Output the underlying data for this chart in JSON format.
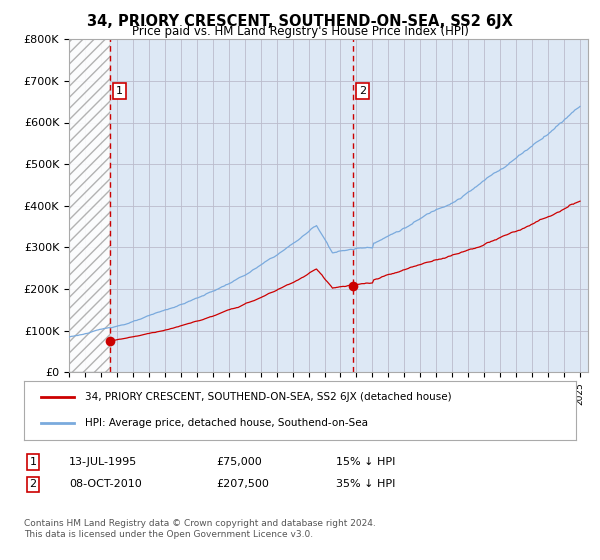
{
  "title": "34, PRIORY CRESCENT, SOUTHEND-ON-SEA, SS2 6JX",
  "subtitle": "Price paid vs. HM Land Registry's House Price Index (HPI)",
  "ylim": [
    0,
    800000
  ],
  "yticks": [
    0,
    100000,
    200000,
    300000,
    400000,
    500000,
    600000,
    700000,
    800000
  ],
  "ytick_labels": [
    "£0",
    "£100K",
    "£200K",
    "£300K",
    "£400K",
    "£500K",
    "£600K",
    "£700K",
    "£800K"
  ],
  "xlim_start": 1993.0,
  "xlim_end": 2025.5,
  "hatch_end": 1995.54,
  "purchase1_x": 1995.54,
  "purchase1_y": 75000,
  "purchase2_x": 2010.77,
  "purchase2_y": 207500,
  "line_color_price": "#cc0000",
  "line_color_hpi": "#7aaadd",
  "marker_color": "#cc0000",
  "dashed_line_color": "#cc0000",
  "grid_color": "#bbbbcc",
  "plot_bg_color": "#dde8f5",
  "background_color": "#ffffff",
  "legend_label_price": "34, PRIORY CRESCENT, SOUTHEND-ON-SEA, SS2 6JX (detached house)",
  "legend_label_hpi": "HPI: Average price, detached house, Southend-on-Sea",
  "annotation1_date": "13-JUL-1995",
  "annotation1_price": "£75,000",
  "annotation1_hpi": "15% ↓ HPI",
  "annotation2_date": "08-OCT-2010",
  "annotation2_price": "£207,500",
  "annotation2_hpi": "35% ↓ HPI",
  "footer": "Contains HM Land Registry data © Crown copyright and database right 2024.\nThis data is licensed under the Open Government Licence v3.0."
}
